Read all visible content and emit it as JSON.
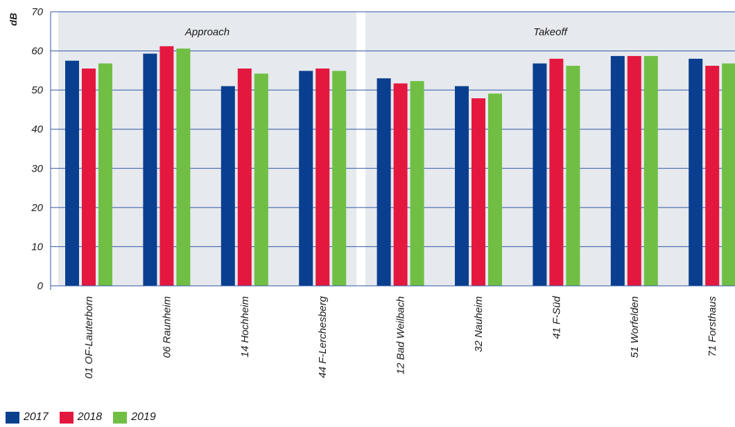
{
  "chart_data": {
    "type": "bar",
    "ylabel": "dB",
    "ylim": [
      0,
      70
    ],
    "yticks": [
      0,
      10,
      20,
      30,
      40,
      50,
      60,
      70
    ],
    "grid": true,
    "legend_position": "bottom-left",
    "groups": [
      {
        "label": "Approach",
        "categories": [
          0,
          1,
          2,
          3
        ]
      },
      {
        "label": "Takeoff",
        "categories": [
          4,
          5,
          6,
          7,
          8
        ]
      }
    ],
    "categories": [
      "01 OF-Lauterborn",
      "06 Raunheim",
      "14 Hochheim",
      "44 F-Lerchesberg",
      "12 Bad Weilbach",
      "32 Nauheim",
      "41 F-Süd",
      "51 Worfelden",
      "71 Forsthaus"
    ],
    "series": [
      {
        "name": "2017",
        "color": "#0a3f8f",
        "values": [
          57.5,
          59.3,
          51.0,
          54.9,
          53.0,
          51.0,
          56.8,
          58.7,
          58.0
        ]
      },
      {
        "name": "2018",
        "color": "#e4183f",
        "values": [
          55.5,
          61.2,
          55.5,
          55.5,
          51.7,
          47.9,
          58.0,
          58.7,
          56.2
        ]
      },
      {
        "name": "2019",
        "color": "#70bf44",
        "values": [
          56.8,
          60.6,
          54.2,
          54.9,
          52.3,
          49.1,
          56.2,
          58.7,
          56.8
        ]
      }
    ]
  }
}
